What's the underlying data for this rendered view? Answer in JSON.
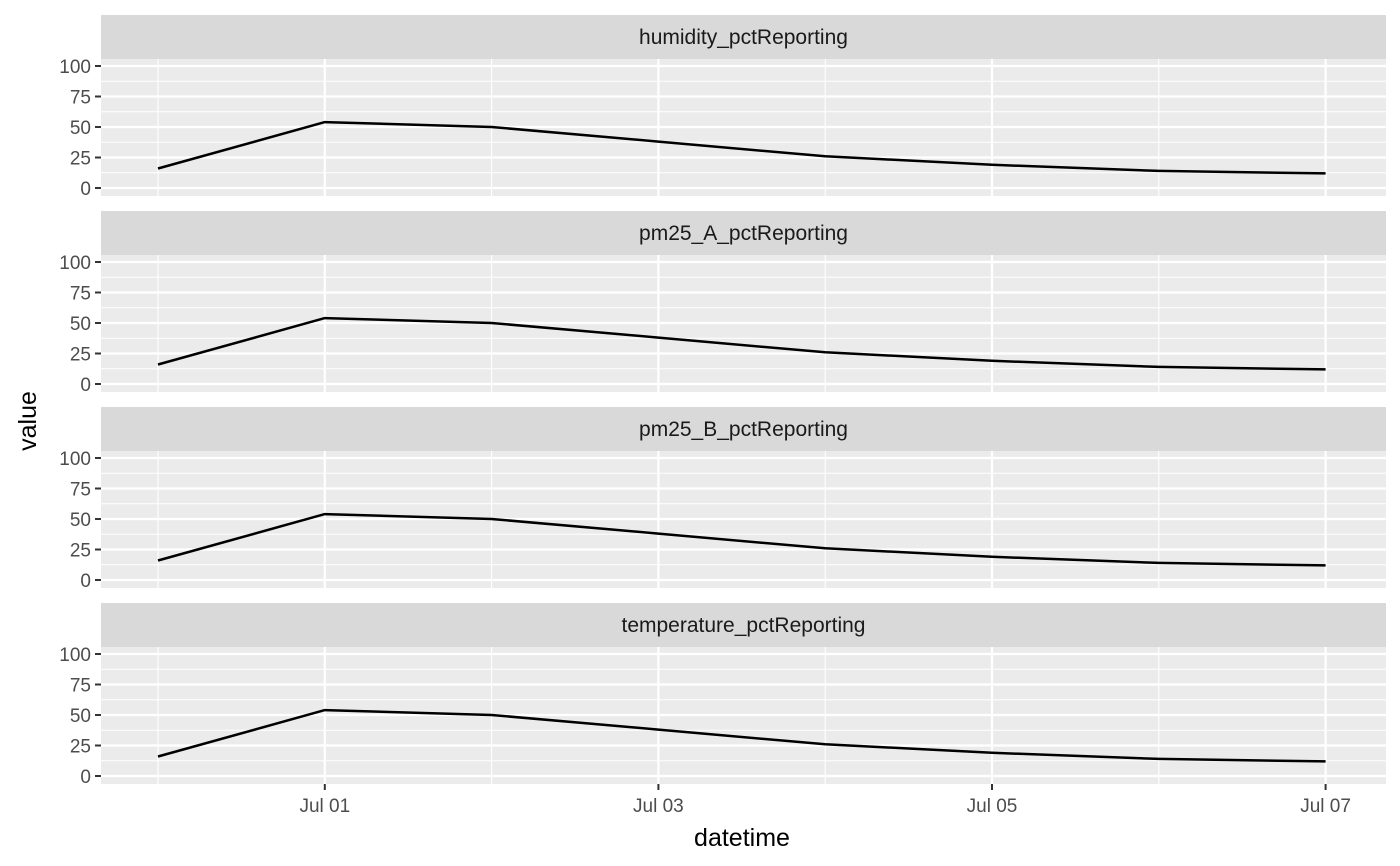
{
  "chart_data": {
    "type": "line",
    "xlabel": "datetime",
    "ylabel": "value",
    "x": [
      "Jun 30",
      "Jul 01",
      "Jul 02",
      "Jul 03",
      "Jul 04",
      "Jul 05",
      "Jul 06",
      "Jul 07"
    ],
    "x_tick_labels": [
      "Jul 01",
      "Jul 03",
      "Jul 05",
      "Jul 07"
    ],
    "ylim": [
      0,
      100
    ],
    "y_ticks": [
      0,
      25,
      50,
      75,
      100
    ],
    "grid": true,
    "facets": [
      {
        "label": "humidity_pctReporting",
        "values": [
          16,
          54,
          50,
          38,
          26,
          19,
          14,
          12
        ]
      },
      {
        "label": "pm25_A_pctReporting",
        "values": [
          16,
          54,
          50,
          38,
          26,
          19,
          14,
          12
        ]
      },
      {
        "label": "pm25_B_pctReporting",
        "values": [
          16,
          54,
          50,
          38,
          26,
          19,
          14,
          12
        ]
      },
      {
        "label": "temperature_pctReporting",
        "values": [
          16,
          54,
          50,
          38,
          26,
          19,
          14,
          12
        ]
      }
    ]
  }
}
